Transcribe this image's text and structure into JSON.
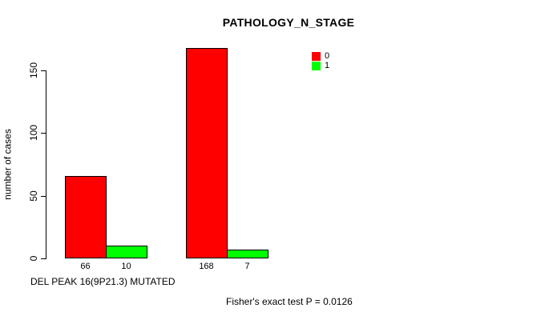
{
  "chart_data": {
    "type": "bar",
    "title": "PATHOLOGY_N_STAGE",
    "ylabel": "number of cases",
    "xlabel": "DEL PEAK 16(9P21.3) MUTATED",
    "annotation": "Fisher's exact test P = 0.0126",
    "ylim": [
      0,
      150
    ],
    "yticks": [
      "0",
      "50",
      "100",
      "150"
    ],
    "grid": false,
    "legend_position": "top-right-inside",
    "legend": [
      {
        "label": "0",
        "color": "#ff0000"
      },
      {
        "label": "1",
        "color": "#00ff00"
      }
    ],
    "series_names": [
      "0",
      "1"
    ],
    "groups": [
      {
        "bars": [
          {
            "series": "0",
            "value": 66,
            "color": "#ff0000"
          },
          {
            "series": "1",
            "value": 10,
            "color": "#00ff00"
          }
        ]
      },
      {
        "bars": [
          {
            "series": "0",
            "value": 168,
            "color": "#ff0000"
          },
          {
            "series": "1",
            "value": 7,
            "color": "#00ff00"
          }
        ]
      }
    ],
    "bar_value_labels_shown": true,
    "axis_color": "#000000",
    "background_color": "#ffffff"
  }
}
